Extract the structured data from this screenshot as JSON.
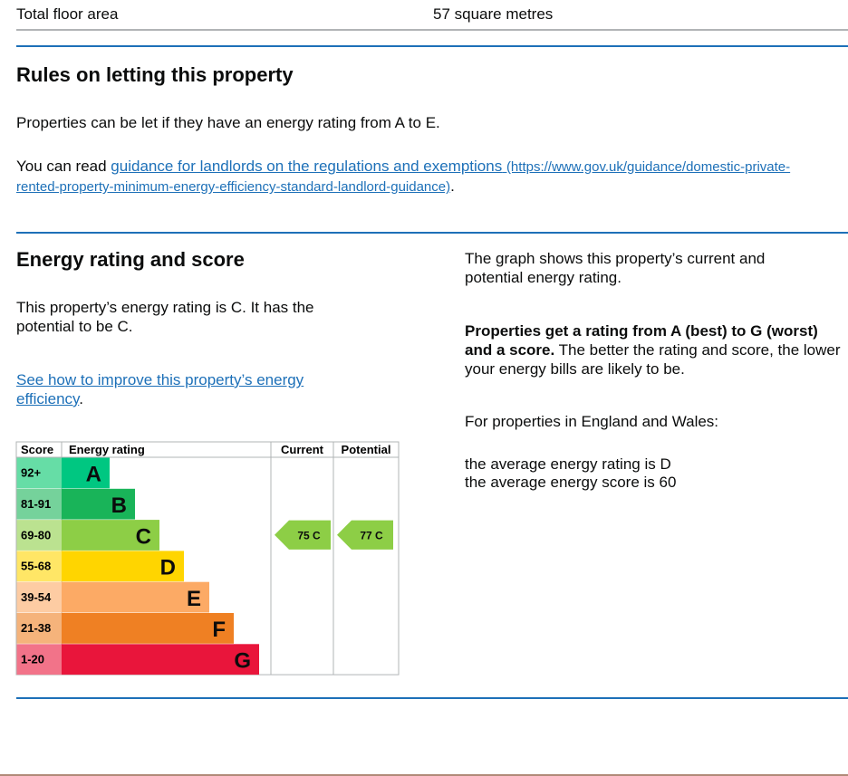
{
  "summary": {
    "label": "Total floor area",
    "value": "57 square metres"
  },
  "letting": {
    "heading": "Rules on letting this property",
    "text": "Properties can be let if they have an energy rating from A to E.",
    "read_prefix": "You can read ",
    "link_text": "guidance for landlords on the regulations and exemptions",
    "link_url": "(https://www.gov.uk/guidance/domestic-private-rented-property-minimum-energy-efficiency-standard-landlord-guidance)",
    "period": "."
  },
  "rating": {
    "heading": "Energy rating and score",
    "text": "This property’s energy rating is C. It has the potential to be C.",
    "improve_link": "See how to improve this property’s energy efficiency",
    "period": ".",
    "table": {
      "headers": [
        "Score",
        "Energy rating",
        "Current",
        "Potential"
      ],
      "rows": [
        {
          "score": "92+",
          "band": "A"
        },
        {
          "score": "81-91",
          "band": "B"
        },
        {
          "score": "69-80",
          "band": "C"
        },
        {
          "score": "55-68",
          "band": "D"
        },
        {
          "score": "39-54",
          "band": "E"
        },
        {
          "score": "21-38",
          "band": "F"
        },
        {
          "score": "1-20",
          "band": "G"
        }
      ],
      "current": "75 C",
      "potential": "77 C"
    }
  },
  "side": {
    "graph_text": "The graph shows this property’s current and potential energy rating.",
    "bold_text": "Properties get a rating from A (best) to G (worst) and a score.",
    "rest_text": " The better the rating and score, the lower your energy bills are likely to be.",
    "region_text": "For properties in England and Wales:",
    "avg_rating": "the average energy rating is D",
    "avg_score": "the average energy score is 60"
  }
}
